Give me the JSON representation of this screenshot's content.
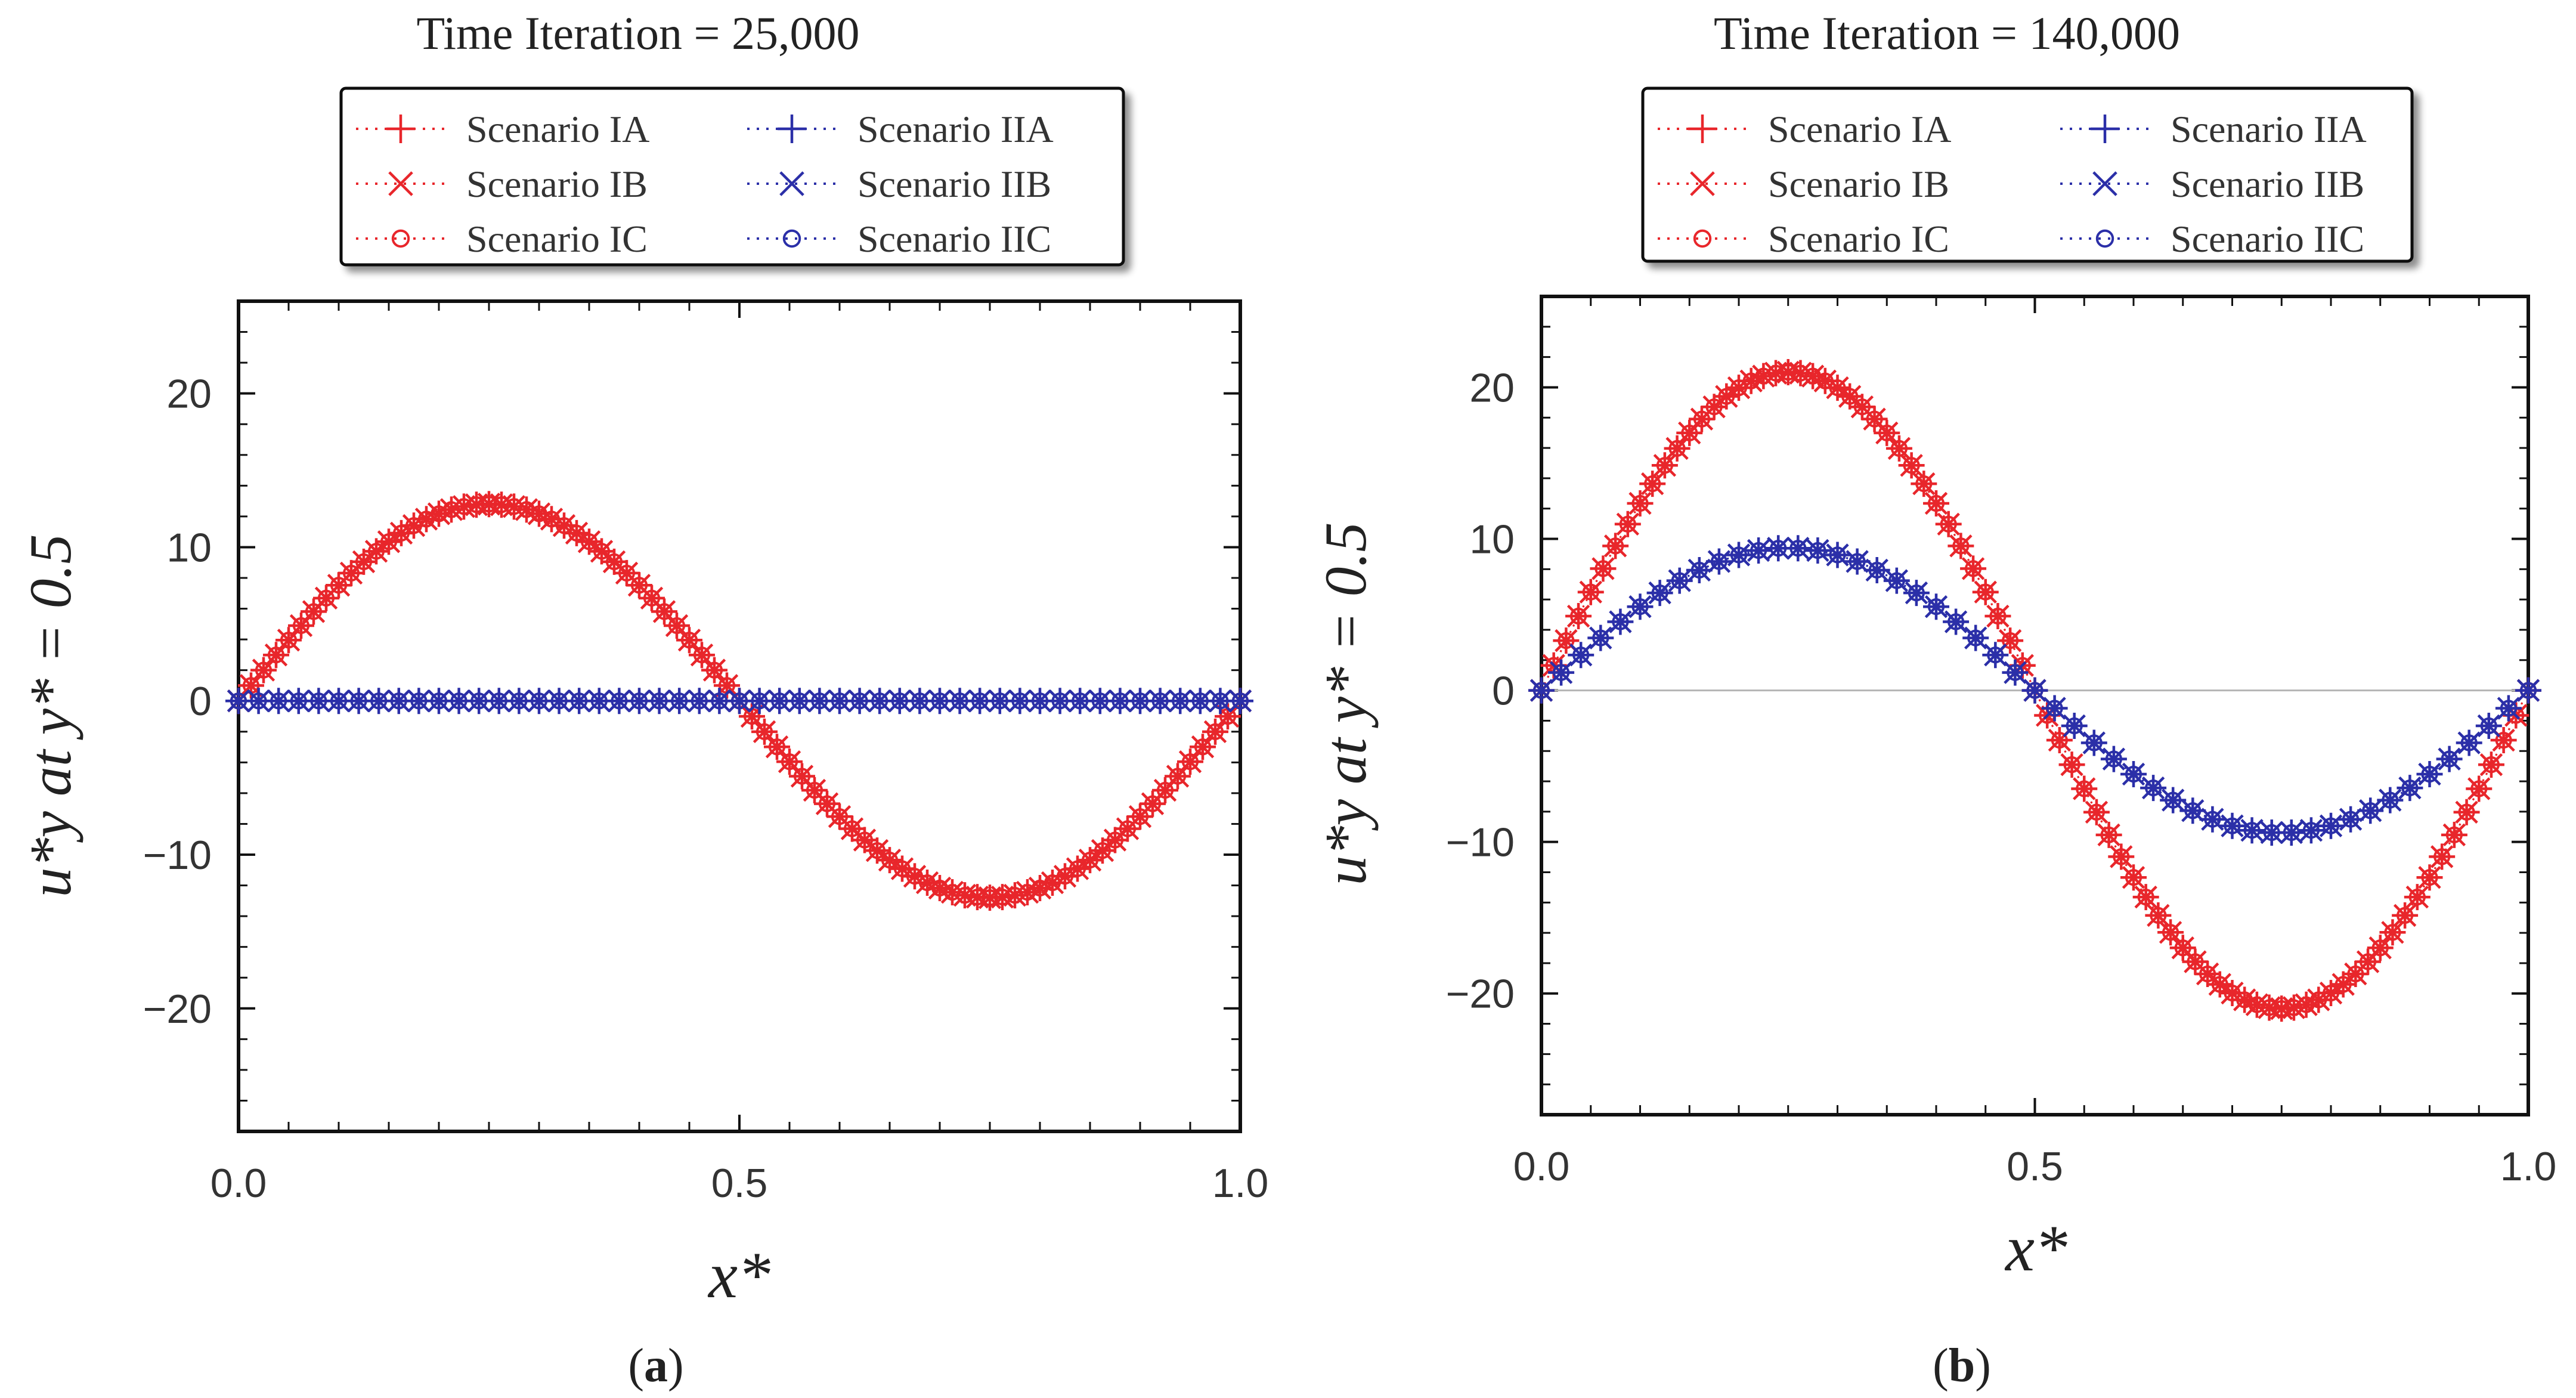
{
  "figure": {
    "series_styles": [
      {
        "name": "Scenario IA",
        "marker": "plus",
        "color": "#e8262b"
      },
      {
        "name": "Scenario IB",
        "marker": "cross",
        "color": "#e8262b"
      },
      {
        "name": "Scenario IC",
        "marker": "circle",
        "color": "#e8262b"
      },
      {
        "name": "Scenario IIA",
        "marker": "plus",
        "color": "#2b2fa8"
      },
      {
        "name": "Scenario IIB",
        "marker": "cross",
        "color": "#2b2fa8"
      },
      {
        "name": "Scenario IIC",
        "marker": "circle",
        "color": "#2b2fa8"
      }
    ],
    "colors": {
      "red": "#e8262b",
      "blue": "#2b2fa8",
      "axis": "#111111",
      "text": "#222222"
    }
  },
  "chart_data": [
    {
      "type": "line",
      "title": "Time Iteration = 25,000",
      "panel_label": "a",
      "xlabel": "x*",
      "ylabel": "u*y at y* = 0.5",
      "xlim": [
        0,
        1.0
      ],
      "ylim": [
        -28,
        26
      ],
      "xticks": [
        0.0,
        0.5,
        1.0
      ],
      "xtick_labels": [
        "0.0",
        "0.5",
        "1.0"
      ],
      "yticks": [
        -20,
        -10,
        0,
        10,
        20
      ],
      "ytick_labels": [
        "−20",
        "−10",
        "0",
        "10",
        "20"
      ],
      "grid": false,
      "legend": "top",
      "series": [
        {
          "name": "Scenario IA",
          "function": "amp*sin(2*pi*x)",
          "amplitude": 12.8,
          "n_points": 81
        },
        {
          "name": "Scenario IB",
          "function": "amp*sin(2*pi*x)",
          "amplitude": 12.8,
          "n_points": 81
        },
        {
          "name": "Scenario IC",
          "function": "amp*sin(2*pi*x)",
          "amplitude": 12.8,
          "n_points": 81
        },
        {
          "name": "Scenario IIA",
          "function": "constant",
          "amplitude": 0,
          "n_points": 51
        },
        {
          "name": "Scenario IIB",
          "function": "constant",
          "amplitude": 0,
          "n_points": 51
        },
        {
          "name": "Scenario IIC",
          "function": "constant",
          "amplitude": 0,
          "n_points": 51
        }
      ]
    },
    {
      "type": "line",
      "title": "Time Iteration = 140,000",
      "panel_label": "b",
      "xlabel": "x*",
      "ylabel": "u*y at y* = 0.5",
      "xlim": [
        0,
        1.0
      ],
      "ylim": [
        -28,
        26
      ],
      "xticks": [
        0.0,
        0.5,
        1.0
      ],
      "xtick_labels": [
        "0.0",
        "0.5",
        "1.0"
      ],
      "yticks": [
        -20,
        -10,
        0,
        10,
        20
      ],
      "ytick_labels": [
        "−20",
        "−10",
        "0",
        "10",
        "20"
      ],
      "grid": false,
      "legend": "top",
      "series": [
        {
          "name": "Scenario IA",
          "function": "amp*sin(2*pi*x)",
          "amplitude": 21.0,
          "n_points": 81
        },
        {
          "name": "Scenario IB",
          "function": "amp*sin(2*pi*x)",
          "amplitude": 21.0,
          "n_points": 81
        },
        {
          "name": "Scenario IC",
          "function": "amp*sin(2*pi*x)",
          "amplitude": 21.0,
          "n_points": 81
        },
        {
          "name": "Scenario IIA",
          "function": "amp*sin(2*pi*x)",
          "amplitude": 9.4,
          "n_points": 51
        },
        {
          "name": "Scenario IIB",
          "function": "amp*sin(2*pi*x)",
          "amplitude": 9.4,
          "n_points": 51
        },
        {
          "name": "Scenario IIC",
          "function": "amp*sin(2*pi*x)",
          "amplitude": 9.4,
          "n_points": 51
        }
      ]
    }
  ]
}
